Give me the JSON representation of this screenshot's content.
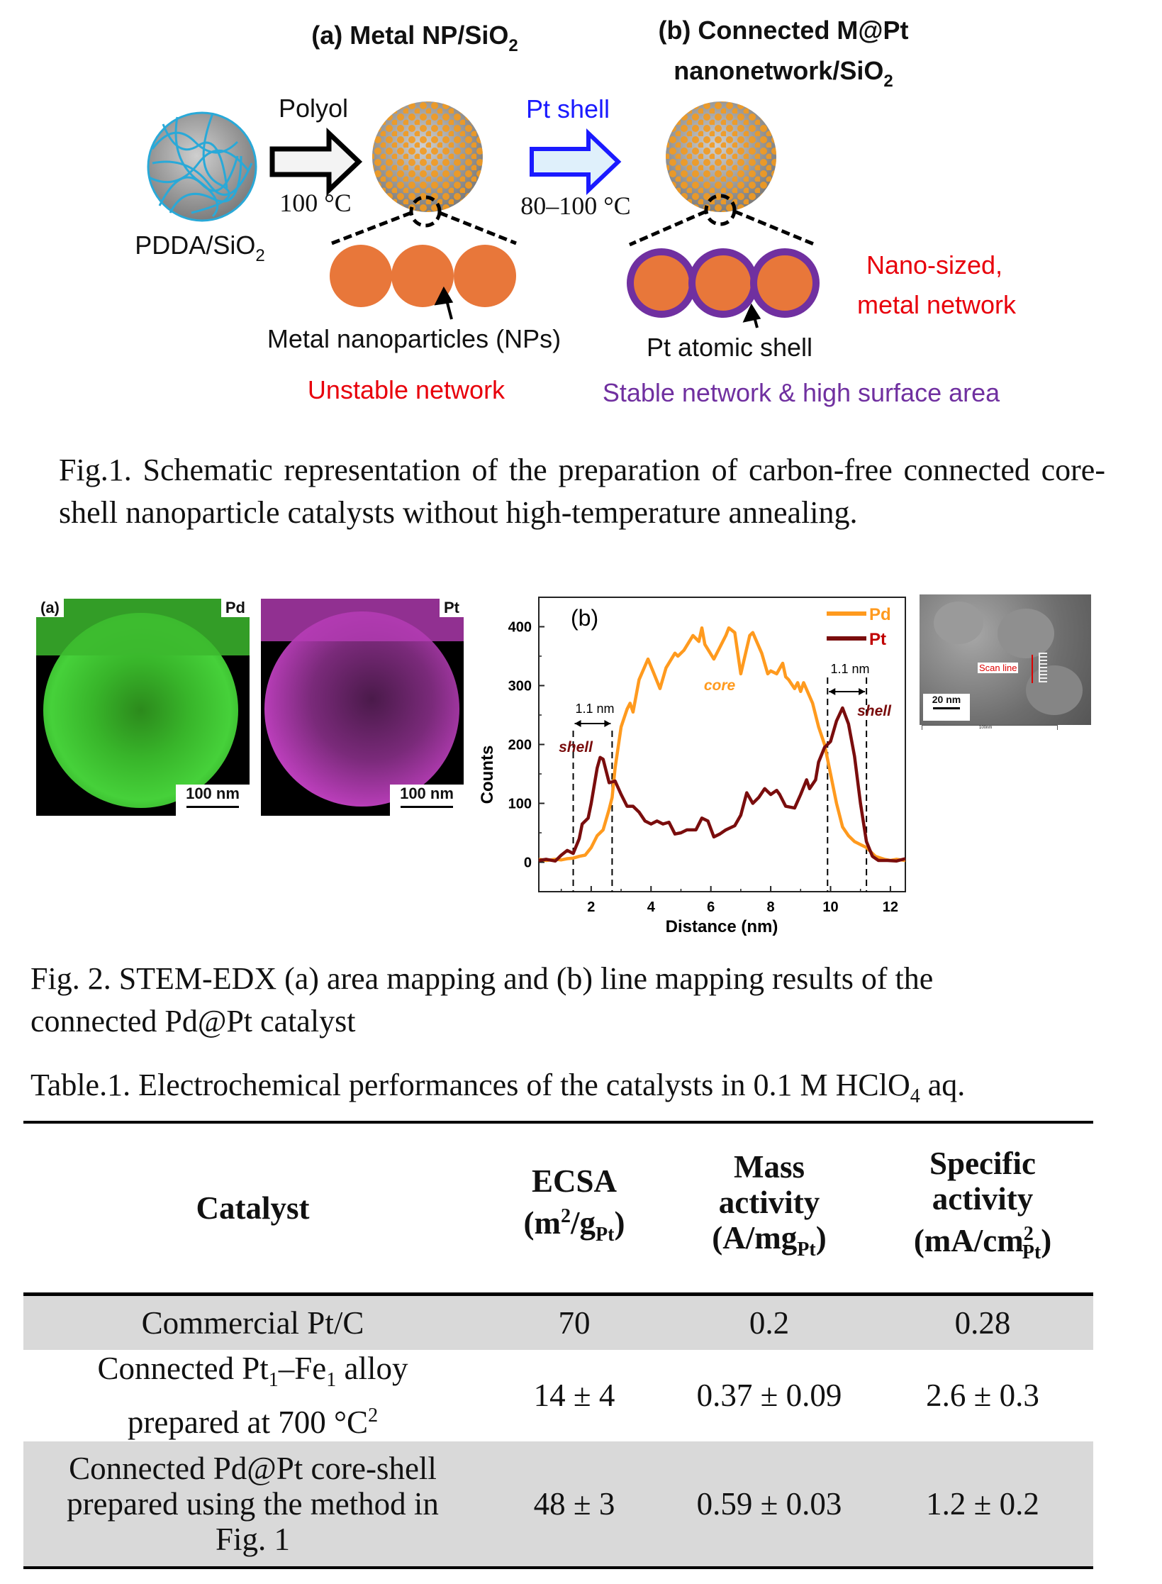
{
  "fig1": {
    "title_a": "(a) Metal NP/SiO",
    "title_a_sub": "2",
    "title_b1": "(b) Connected M@Pt",
    "title_b2": "nanonetwork/SiO",
    "title_b2_sub": "2",
    "polyol": "Polyol",
    "temp1": "100 °C",
    "pdda": "PDDA/SiO",
    "pdda_sub": "2",
    "pt_shell": "Pt shell",
    "temp2": "80–100 °C",
    "metal_nps": "Metal nanoparticles (NPs)",
    "pt_atomic_shell": "Pt atomic shell",
    "nano_sized": "Nano-sized,",
    "metal_network": "metal network",
    "unstable": "Unstable network",
    "stable": "Stable network & high surface area",
    "colors": {
      "orange": "#e8773a",
      "purple": "#7030a0",
      "red": "#e8000b",
      "blue": "#1a1aff",
      "cyan": "#29a9d8"
    },
    "caption": "Fig.1. Schematic representation of the preparation of carbon-free connected core-shell nanoparticle catalysts without high-temperature annealing."
  },
  "fig2": {
    "map_a_label": "(a)",
    "map_pd_label": "Pd",
    "map_pt_label": "Pt",
    "scale_100": "100 nm",
    "sem_scan_line": "Scan line",
    "sem_scale": "20 nm",
    "sem_bar": "100nm",
    "caption_line1": "Fig. 2. STEM-EDX (a) area mapping and (b) line mapping results of the",
    "caption_line2": "connected Pd@Pt catalyst"
  },
  "chart_data": {
    "type": "line",
    "panel_label": "(b)",
    "xlabel": "Distance (nm)",
    "ylabel": "Counts",
    "xlim": [
      0.25,
      12.5
    ],
    "ylim": [
      -50,
      450
    ],
    "xticks": [
      2,
      4,
      6,
      8,
      10,
      12
    ],
    "yticks": [
      0,
      100,
      200,
      300,
      400
    ],
    "legend_position": "top-right",
    "series": [
      {
        "name": "Pd",
        "color": "#ff9a1e",
        "x": [
          0.25,
          0.5,
          0.8,
          1.0,
          1.2,
          1.4,
          1.6,
          1.8,
          2.0,
          2.2,
          2.4,
          2.6,
          2.7,
          2.8,
          3.0,
          3.2,
          3.3,
          3.4,
          3.6,
          3.9,
          4.1,
          4.3,
          4.5,
          4.8,
          4.9,
          5.1,
          5.4,
          5.6,
          5.7,
          5.8,
          6.1,
          6.3,
          6.5,
          6.6,
          6.8,
          7.0,
          7.3,
          7.4,
          7.7,
          7.9,
          8.0,
          8.2,
          8.4,
          8.5,
          8.6,
          8.8,
          8.9,
          9.0,
          9.1,
          9.4,
          9.6,
          9.8,
          10.0,
          10.2,
          10.4,
          10.6,
          10.8,
          11.0,
          11.2,
          11.5,
          11.8,
          12.0,
          12.2,
          12.5
        ],
        "y": [
          5,
          3,
          5,
          4,
          6,
          7,
          10,
          12,
          25,
          45,
          55,
          90,
          110,
          160,
          230,
          260,
          270,
          255,
          310,
          345,
          320,
          295,
          330,
          355,
          350,
          360,
          385,
          375,
          398,
          370,
          345,
          365,
          385,
          398,
          390,
          320,
          385,
          390,
          355,
          320,
          325,
          320,
          338,
          315,
          310,
          295,
          305,
          290,
          305,
          270,
          230,
          200,
          150,
          100,
          60,
          45,
          35,
          30,
          25,
          10,
          5,
          3,
          5,
          3
        ]
      },
      {
        "name": "Pt",
        "color": "#7a0d0d",
        "x": [
          0.25,
          0.5,
          0.8,
          1.0,
          1.2,
          1.4,
          1.6,
          1.7,
          1.9,
          2.0,
          2.2,
          2.3,
          2.4,
          2.6,
          2.8,
          3.0,
          3.2,
          3.4,
          3.6,
          3.8,
          4.0,
          4.2,
          4.4,
          4.6,
          4.8,
          5.0,
          5.2,
          5.5,
          5.7,
          5.9,
          6.1,
          6.3,
          6.5,
          6.8,
          7.0,
          7.2,
          7.4,
          7.6,
          7.8,
          8.0,
          8.2,
          8.3,
          8.5,
          8.8,
          9.0,
          9.2,
          9.3,
          9.5,
          9.6,
          9.8,
          10.0,
          10.2,
          10.4,
          10.6,
          10.8,
          11.0,
          11.2,
          11.4,
          11.6,
          11.9,
          12.2,
          12.5
        ],
        "y": [
          3,
          5,
          2,
          12,
          20,
          15,
          40,
          65,
          75,
          100,
          160,
          178,
          175,
          135,
          138,
          115,
          95,
          95,
          85,
          70,
          65,
          70,
          65,
          68,
          48,
          50,
          55,
          55,
          75,
          70,
          43,
          48,
          55,
          62,
          80,
          118,
          100,
          110,
          125,
          115,
          122,
          115,
          95,
          92,
          115,
          140,
          125,
          140,
          170,
          195,
          205,
          240,
          262,
          235,
          180,
          100,
          35,
          10,
          3,
          3,
          2,
          6
        ]
      }
    ],
    "annotations": [
      {
        "text": "core",
        "color": "#ff9a1e"
      },
      {
        "text": "shell",
        "color": "#7a0d0d"
      },
      {
        "text": "shell",
        "color": "#7a0d0d"
      },
      {
        "text": "1.1 nm"
      },
      {
        "text": "1.1 nm"
      }
    ],
    "shell_markers": [
      1.4,
      2.7,
      9.9,
      11.2
    ]
  },
  "table": {
    "caption": "Table.1. Electrochemical performances of the catalysts in 0.1 M HClO",
    "caption_sub": "4",
    "caption_end": " aq.",
    "headers": {
      "catalyst": "Catalyst",
      "ecsa": "ECSA",
      "ecsa_unit_a": "(m",
      "ecsa_unit_sup": "2",
      "ecsa_unit_b": "/g",
      "ecsa_unit_sub": "Pt",
      "ecsa_unit_c": ")",
      "mass1": "Mass",
      "mass2": "activity",
      "mass_unit_a": "(A/mg",
      "mass_unit_sub": "Pt",
      "mass_unit_c": ")",
      "spec1": "Specific",
      "spec2": "activity",
      "spec_unit_a": "(mA/cm",
      "spec_unit_sup": "2",
      "spec_unit_sub": "Pt",
      "spec_unit_c": ")"
    },
    "rows": [
      {
        "catalyst": "Commercial Pt/C",
        "ecsa": "70",
        "mass": "0.2",
        "specific": "0.28"
      },
      {
        "catalyst_a": "Connected Pt",
        "sub1": "1",
        "catalyst_b": "–Fe",
        "sub2": "1",
        "catalyst_c": " alloy",
        "catalyst_line2": "prepared at 700 °C",
        "sup": "2",
        "ecsa": "14 ± 4",
        "mass": "0.37 ± 0.09",
        "specific": "2.6 ± 0.3"
      },
      {
        "catalyst_line1": "Connected Pd@Pt core-shell",
        "catalyst_line2": "prepared using the method in",
        "catalyst_line3": "Fig. 1",
        "ecsa": "48 ± 3",
        "mass": "0.59 ± 0.03",
        "specific": "1.2 ± 0.2"
      }
    ]
  }
}
